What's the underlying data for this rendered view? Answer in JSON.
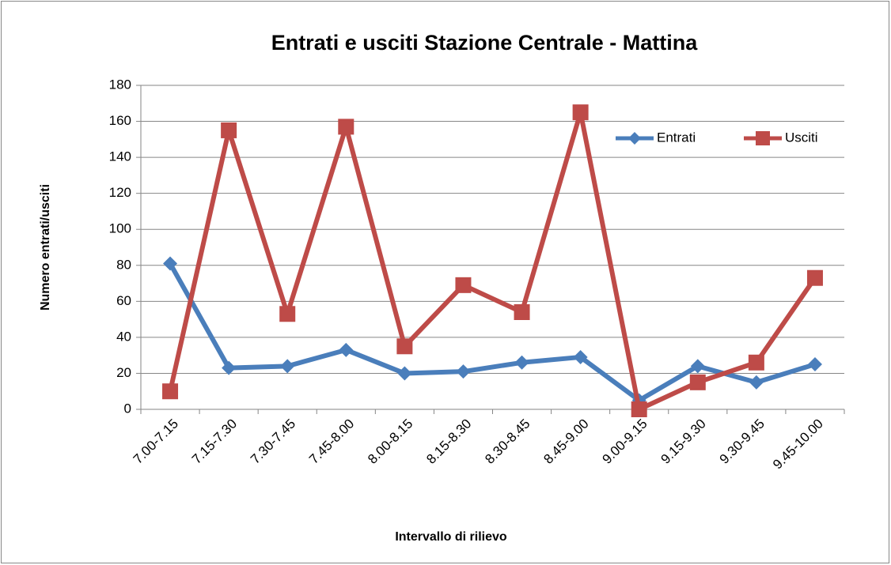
{
  "chart_data": {
    "type": "line",
    "title": "Entrati e usciti Stazione Centrale - Mattina",
    "x_label": "Intervallo di rilievo",
    "y_label": "Numero entrati/usciti",
    "categories": [
      "7.00-7.15",
      "7.15-7.30",
      "7.30-7.45",
      "7.45-8.00",
      "8.00-8.15",
      "8.15-8.30",
      "8.30-8.45",
      "8.45-9.00",
      "9.00-9.15",
      "9.15-9.30",
      "9.30-9.45",
      "9.45-10.00"
    ],
    "series": [
      {
        "name": "Entrati",
        "color": "#4a7ebb",
        "marker": "diamond",
        "values": [
          81,
          23,
          24,
          33,
          20,
          21,
          26,
          29,
          5,
          24,
          15,
          25
        ]
      },
      {
        "name": "Usciti",
        "color": "#be4b48",
        "marker": "square",
        "values": [
          10,
          155,
          53,
          157,
          35,
          69,
          54,
          165,
          0,
          15,
          26,
          73
        ]
      }
    ],
    "ylim": [
      0,
      180
    ],
    "yticks": [
      0,
      20,
      40,
      60,
      80,
      100,
      120,
      140,
      160,
      180
    ],
    "grid": true,
    "legend": "upper right"
  }
}
